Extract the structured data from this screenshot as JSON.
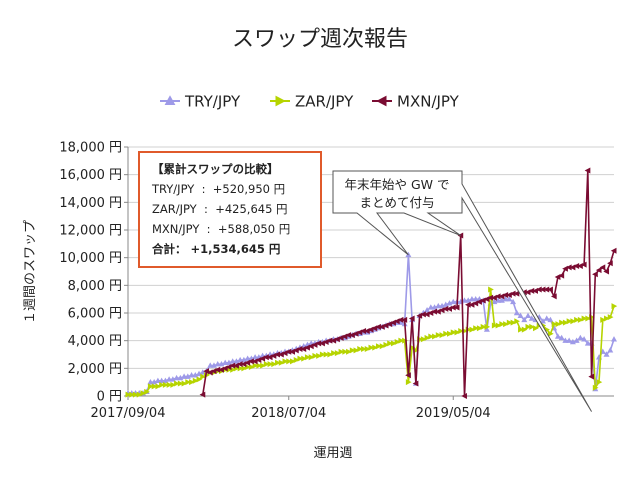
{
  "chart_data": {
    "type": "line",
    "title": "スワップ週次報告",
    "xlabel": "運用週",
    "ylabel": "１週間のスワップ",
    "ylim": [
      0,
      18000
    ],
    "yticks": [
      0,
      2000,
      4000,
      6000,
      8000,
      10000,
      12000,
      14000,
      16000,
      18000
    ],
    "ytick_labels": [
      "0 円",
      "2,000 円",
      "4,000 円",
      "6,000 円",
      "8,000 円",
      "10,000 円",
      "12,000 円",
      "14,000 円",
      "16,000 円",
      "18,000 円"
    ],
    "x_ticks": [
      {
        "week": 1,
        "label": "2017/09/04"
      },
      {
        "week": 44,
        "label": "2018/07/04"
      },
      {
        "week": 88,
        "label": "2019/05/04"
      }
    ],
    "x_range": [
      1,
      131
    ],
    "legend_position": "top",
    "series": [
      {
        "name": "TRY/JPY",
        "color": "#9e9ae8",
        "marker": "triangle",
        "values": [
          200,
          200,
          200,
          200,
          200,
          300,
          1000,
          1000,
          1100,
          1100,
          1100,
          1200,
          1200,
          1300,
          1300,
          1400,
          1400,
          1500,
          1500,
          1600,
          1700,
          1800,
          2200,
          2200,
          2300,
          2300,
          2400,
          2400,
          2500,
          2500,
          2600,
          2600,
          2700,
          2700,
          2800,
          2800,
          2900,
          2900,
          3000,
          3000,
          3100,
          3100,
          3200,
          3200,
          3300,
          3400,
          3500,
          3600,
          3700,
          3800,
          3800,
          3900,
          3900,
          4000,
          4000,
          4100,
          4100,
          4200,
          4200,
          4300,
          4400,
          4500,
          4500,
          4600,
          4600,
          4700,
          4800,
          4900,
          5000,
          5100,
          5200,
          5200,
          5300,
          5300,
          5200,
          10200,
          5500,
          900,
          5800,
          6000,
          6200,
          6400,
          6400,
          6500,
          6500,
          6600,
          6700,
          6800,
          6800,
          6800,
          6900,
          6900,
          7000,
          7000,
          7000,
          6900,
          4800,
          6700,
          6800,
          6900,
          6900,
          7000,
          7000,
          6800,
          6000,
          5800,
          5500,
          5800,
          5600,
          5500,
          5700,
          5400,
          5600,
          5500,
          4900,
          4300,
          4200,
          4000,
          4000,
          3900,
          4000,
          4200,
          4100,
          3800,
          3800,
          500,
          2800,
          3200,
          3000,
          3300,
          4100
        ]
      },
      {
        "name": "ZAR/JPY",
        "color": "#b6d400",
        "marker": "arrow",
        "values": [
          100,
          100,
          100,
          100,
          200,
          300,
          700,
          700,
          700,
          800,
          800,
          800,
          800,
          900,
          900,
          900,
          1000,
          1000,
          1100,
          1200,
          1400,
          1500,
          1700,
          1700,
          1800,
          1800,
          1900,
          1900,
          1900,
          2000,
          2000,
          2000,
          2100,
          2100,
          2200,
          2200,
          2200,
          2300,
          2300,
          2300,
          2400,
          2400,
          2500,
          2500,
          2500,
          2600,
          2700,
          2700,
          2800,
          2800,
          2900,
          2900,
          3000,
          3000,
          3000,
          3100,
          3100,
          3200,
          3200,
          3200,
          3300,
          3300,
          3400,
          3400,
          3400,
          3500,
          3500,
          3600,
          3600,
          3700,
          3800,
          3800,
          3900,
          4000,
          4000,
          1000,
          3500,
          3300,
          4100,
          4100,
          4200,
          4300,
          4300,
          4400,
          4400,
          4500,
          4500,
          4600,
          4600,
          4700,
          4700,
          4800,
          4800,
          4900,
          4900,
          5000,
          5000,
          7700,
          5100,
          5100,
          5200,
          5200,
          5300,
          5300,
          5400,
          4800,
          4800,
          5000,
          5000,
          4900,
          5100,
          5100,
          4800,
          4500,
          5200,
          5200,
          5300,
          5300,
          5400,
          5400,
          5500,
          5500,
          5600,
          5600,
          5700,
          600,
          1000,
          5500,
          5600,
          5700,
          6500
        ]
      },
      {
        "name": "MXN/JPY",
        "color": "#7a0c32",
        "marker": "arrow-left",
        "values": [
          null,
          null,
          null,
          null,
          null,
          null,
          null,
          null,
          null,
          null,
          null,
          null,
          null,
          null,
          null,
          null,
          null,
          null,
          null,
          null,
          100,
          1800,
          1700,
          1800,
          1900,
          1900,
          2000,
          2100,
          2200,
          2200,
          2300,
          2300,
          2400,
          2500,
          2500,
          2600,
          2700,
          2800,
          2800,
          2900,
          3000,
          3000,
          3100,
          3200,
          3200,
          3300,
          3400,
          3400,
          3500,
          3600,
          3700,
          3800,
          3800,
          3900,
          4000,
          4000,
          4100,
          4200,
          4300,
          4400,
          4400,
          4500,
          4600,
          4700,
          4700,
          4800,
          4900,
          5000,
          5000,
          5100,
          5200,
          5300,
          5400,
          5500,
          5500,
          1500,
          5600,
          900,
          5800,
          5900,
          5900,
          6000,
          6100,
          6100,
          6200,
          6300,
          6300,
          6400,
          6400,
          11600,
          0,
          6600,
          6600,
          6700,
          6800,
          6900,
          7000,
          7100,
          7100,
          7200,
          7200,
          7300,
          7300,
          7400,
          7400,
          7500,
          7500,
          7500,
          7600,
          7600,
          7700,
          7700,
          7700,
          7700,
          7200,
          8600,
          8700,
          9200,
          9300,
          9300,
          9400,
          9400,
          9500,
          16300,
          1400,
          8800,
          9100,
          9300,
          9000,
          9600,
          10500
        ]
      }
    ],
    "annotation": {
      "line1": "年末年始や GW で",
      "line2": "まとめて付与",
      "targets": [
        76,
        90,
        125
      ]
    },
    "summary": {
      "title": "【累計スワップの比較】",
      "rows": [
        "TRY/JPY  :  +520,950 円",
        "ZAR/JPY  :  +425,645 円",
        "MXN/JPY  :  +588,050 円"
      ],
      "total": "合計： +1,534,645 円"
    }
  }
}
